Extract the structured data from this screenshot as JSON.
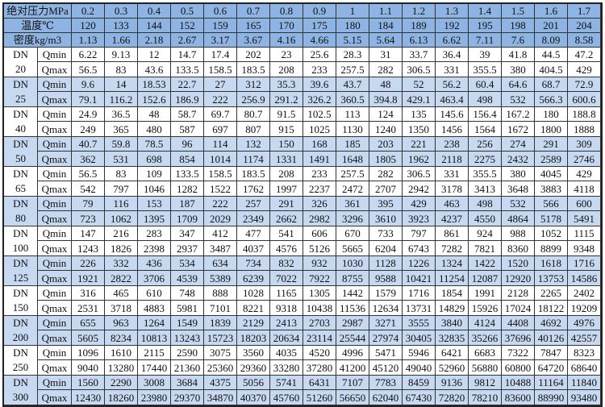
{
  "header": {
    "pressure_label": "绝对压力MPa",
    "temperature_label": "温度℃",
    "density_label": "密度kg/m3",
    "pressures": [
      "0.2",
      "0.3",
      "0.4",
      "0.5",
      "0.6",
      "0.7",
      "0.8",
      "0.9",
      "1",
      "1.1",
      "1.2",
      "1.3",
      "1.4",
      "1.5",
      "1.6",
      "1.7"
    ],
    "temperatures": [
      "120",
      "133",
      "144",
      "152",
      "159",
      "165",
      "170",
      "175",
      "180",
      "184",
      "189",
      "192",
      "195",
      "198",
      "201",
      "204"
    ],
    "densities": [
      "1.13",
      "1.66",
      "2.18",
      "2.67",
      "3.17",
      "3.67",
      "4.16",
      "4.66",
      "5.15",
      "5.64",
      "6.13",
      "6.62",
      "7.11",
      "7.6",
      "8.09",
      "8.58"
    ]
  },
  "colors": {
    "header_bg": "#8db4e2",
    "band_bg": "#c6d9f1",
    "plain_bg": "#ffffff"
  },
  "groups": [
    {
      "dn": "DN",
      "size": "20",
      "qmin_label": "Qmin",
      "qmax_label": "Qmax",
      "qmin": [
        "6.22",
        "9.13",
        "12",
        "14.7",
        "17.4",
        "202",
        "23",
        "25.6",
        "28.3",
        "31",
        "33.7",
        "36.4",
        "39",
        "41.8",
        "44.5",
        "47.2"
      ],
      "qmax": [
        "56.5",
        "83",
        "43.6",
        "133.5",
        "158.5",
        "183.5",
        "208",
        "233",
        "257.5",
        "282",
        "306.5",
        "331",
        "355.5",
        "380",
        "404.5",
        "429"
      ]
    },
    {
      "dn": "DN",
      "size": "25",
      "qmin_label": "Qmin",
      "qmax_label": "Qmax",
      "qmin": [
        "9.6",
        "14",
        "18.53",
        "22.7",
        "27",
        "312",
        "35.3",
        "39.6",
        "43.7",
        "48",
        "52",
        "56.2",
        "60.4",
        "64.6",
        "68.7",
        "72.9"
      ],
      "qmax": [
        "79.1",
        "116.2",
        "152.6",
        "186.9",
        "222",
        "256.9",
        "291.2",
        "326.2",
        "360.5",
        "394.8",
        "429.1",
        "463.4",
        "498",
        "532",
        "566.3",
        "600.6"
      ]
    },
    {
      "dn": "DN",
      "size": "40",
      "qmin_label": "Qmin",
      "qmax_label": "Qmax",
      "qmin": [
        "24.9",
        "36.5",
        "48",
        "58.7",
        "69.7",
        "80.7",
        "91.5",
        "102.5",
        "113",
        "124",
        "135",
        "145.6",
        "156.4",
        "167.2",
        "180",
        "188.8"
      ],
      "qmax": [
        "249",
        "365",
        "480",
        "587",
        "697",
        "807",
        "915",
        "1025",
        "1130",
        "1240",
        "1350",
        "1456",
        "1564",
        "1672",
        "1800",
        "1888"
      ]
    },
    {
      "dn": "DN",
      "size": "50",
      "qmin_label": "Qmin",
      "qmax_label": "Qmax",
      "qmin": [
        "40.7",
        "59.8",
        "78.5",
        "96",
        "114",
        "132",
        "150",
        "168",
        "185",
        "203",
        "221",
        "238",
        "256",
        "274",
        "291",
        "309"
      ],
      "qmax": [
        "362",
        "531",
        "698",
        "854",
        "1014",
        "1174",
        "1331",
        "1491",
        "1648",
        "1805",
        "1962",
        "2118",
        "2275",
        "2432",
        "2589",
        "2746"
      ]
    },
    {
      "dn": "DN",
      "size": "65",
      "qmin_label": "Qmin",
      "qmax_label": "Qmax",
      "qmin": [
        "56.5",
        "83",
        "109",
        "133.5",
        "158.5",
        "183.5",
        "208",
        "233",
        "257.5",
        "282",
        "306.5",
        "331",
        "355.5",
        "380",
        "4045",
        "429"
      ],
      "qmax": [
        "542",
        "797",
        "1046",
        "1282",
        "1522",
        "1762",
        "1997",
        "2237",
        "2472",
        "2707",
        "2942",
        "3178",
        "3413",
        "3648",
        "3883",
        "4118"
      ]
    },
    {
      "dn": "DN",
      "size": "80",
      "qmin_label": "Qmin",
      "qmax_label": "Qmax",
      "qmin": [
        "79",
        "116",
        "153",
        "187",
        "222",
        "257",
        "291",
        "326",
        "361",
        "395",
        "429",
        "463",
        "498",
        "532",
        "566",
        "600"
      ],
      "qmax": [
        "723",
        "1062",
        "1395",
        "1709",
        "2029",
        "2349",
        "2662",
        "2982",
        "3296",
        "3610",
        "3923",
        "4237",
        "4550",
        "4864",
        "5178",
        "5491"
      ]
    },
    {
      "dn": "DN",
      "size": "100",
      "qmin_label": "Qmin",
      "qmax_label": "Qmax",
      "qmin": [
        "147",
        "216",
        "283",
        "347",
        "412",
        "477",
        "541",
        "606",
        "670",
        "733",
        "797",
        "861",
        "924",
        "988",
        "1052",
        "1115"
      ],
      "qmax": [
        "1243",
        "1826",
        "2398",
        "2937",
        "3487",
        "4037",
        "4576",
        "5126",
        "5665",
        "6204",
        "6743",
        "7282",
        "7821",
        "8360",
        "8899",
        "9348"
      ]
    },
    {
      "dn": "DN",
      "size": "125",
      "qmin_label": "Qmin",
      "qmax_label": "Qmax",
      "qmin": [
        "226",
        "332",
        "436",
        "534",
        "634",
        "734",
        "832",
        "932",
        "1030",
        "1128",
        "1226",
        "1324",
        "1422",
        "1520",
        "1618",
        "1716"
      ],
      "qmax": [
        "1921",
        "2822",
        "3706",
        "4539",
        "5389",
        "6239",
        "7022",
        "7922",
        "8755",
        "9588",
        "10421",
        "11254",
        "12087",
        "12920",
        "13753",
        "14586"
      ]
    },
    {
      "dn": "DN",
      "size": "150",
      "qmin_label": "Qmin",
      "qmax_label": "Qmax",
      "qmin": [
        "316",
        "465",
        "610",
        "748",
        "888",
        "1028",
        "1165",
        "1305",
        "1442",
        "1579",
        "1716",
        "1854",
        "1991",
        "2128",
        "2265",
        "2402"
      ],
      "qmax": [
        "2531",
        "3718",
        "4883",
        "5981",
        "7101",
        "8221",
        "9318",
        "10438",
        "11536",
        "12634",
        "13731",
        "14829",
        "15926",
        "17024",
        "18122",
        "19209"
      ]
    },
    {
      "dn": "DN",
      "size": "200",
      "qmin_label": "Qmin",
      "qmax_label": "Qmax",
      "qmin": [
        "655",
        "963",
        "1264",
        "1549",
        "1839",
        "2129",
        "2413",
        "2703",
        "2987",
        "3271",
        "3555",
        "3840",
        "4124",
        "4408",
        "4692",
        "4976"
      ],
      "qmax": [
        "5605",
        "8234",
        "10813",
        "13243",
        "15723",
        "18203",
        "20634",
        "23114",
        "25544",
        "27974",
        "30405",
        "32835",
        "35266",
        "37696",
        "40126",
        "42557"
      ]
    },
    {
      "dn": "DN",
      "size": "250",
      "qmin_label": "Qmin",
      "qmax_label": "Qmax",
      "qmin": [
        "1096",
        "1610",
        "2115",
        "2590",
        "3075",
        "3560",
        "4035",
        "4520",
        "4996",
        "5471",
        "5946",
        "6421",
        "6683",
        "7322",
        "7847",
        "8323"
      ],
      "qmax": [
        "9040",
        "13280",
        "17440",
        "21360",
        "25360",
        "29360",
        "33280",
        "37280",
        "41200",
        "45120",
        "49040",
        "52960",
        "56880",
        "60800",
        "64720",
        "68640"
      ]
    },
    {
      "dn": "DN",
      "size": "300",
      "qmin_label": "Qmin",
      "qmax_label": "Qmax",
      "qmin": [
        "1560",
        "2290",
        "3008",
        "3684",
        "4375",
        "5056",
        "5741",
        "6431",
        "7107",
        "7783",
        "8459",
        "9136",
        "9812",
        "10488",
        "11164",
        "11840"
      ],
      "qmax": [
        "12430",
        "18260",
        "23980",
        "29370",
        "34870",
        "40370",
        "45760",
        "51260",
        "56650",
        "62040",
        "67430",
        "72820",
        "78210",
        "83600",
        "88990",
        "93480"
      ]
    }
  ]
}
